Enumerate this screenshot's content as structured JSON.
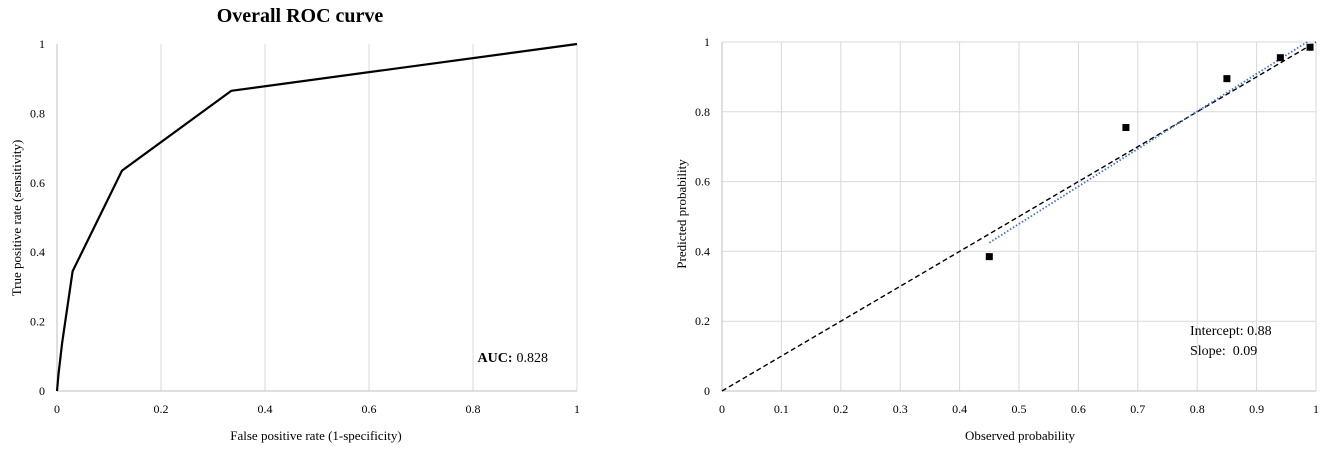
{
  "chart_data": [
    {
      "type": "line",
      "title": "Overall ROC curve",
      "xlabel": "False positive rate (1-specificity)",
      "ylabel": "True positive rate (sensitivity)",
      "xlim": [
        0,
        1
      ],
      "ylim": [
        0,
        1
      ],
      "x_ticks": [
        "0",
        "0.2",
        "0.4",
        "0.6",
        "0.8",
        "1"
      ],
      "y_ticks": [
        "0",
        "0.2",
        "0.4",
        "0.6",
        "0.8",
        "1"
      ],
      "grid": "vertical",
      "series": [
        {
          "x": [
            0,
            0.003,
            0.01,
            0.03,
            0.125,
            0.335,
            1
          ],
          "y": [
            0,
            0.05,
            0.14,
            0.345,
            0.635,
            0.865,
            1
          ],
          "color": "#000000"
        }
      ],
      "annotation": {
        "label": "AUC:",
        "value": "0.828"
      }
    },
    {
      "type": "scatter",
      "xlabel": "Observed probability",
      "ylabel": "Predicted probability",
      "xlim": [
        0,
        1
      ],
      "ylim": [
        0,
        1
      ],
      "x_ticks": [
        "0",
        "0.1",
        "0.2",
        "0.3",
        "0.4",
        "0.5",
        "0.6",
        "0.7",
        "0.8",
        "0.9",
        "1"
      ],
      "y_ticks": [
        "0",
        "0.2",
        "0.4",
        "0.6",
        "0.8",
        "1"
      ],
      "grid": "both",
      "points": {
        "x": [
          0.45,
          0.68,
          0.85,
          0.94,
          0.99
        ],
        "y": [
          0.385,
          0.755,
          0.895,
          0.955,
          0.985
        ]
      },
      "reference_line": {
        "x": [
          0,
          1
        ],
        "y": [
          0,
          1
        ],
        "style": "dashed",
        "color": "#000000"
      },
      "trend_line": {
        "x": [
          0.45,
          0.985
        ],
        "y": [
          0.425,
          1.0
        ],
        "style": "dotted",
        "color": "#4472c4"
      },
      "annotations": [
        "Intercept: 0.88",
        "Slope:  0.09"
      ]
    }
  ]
}
